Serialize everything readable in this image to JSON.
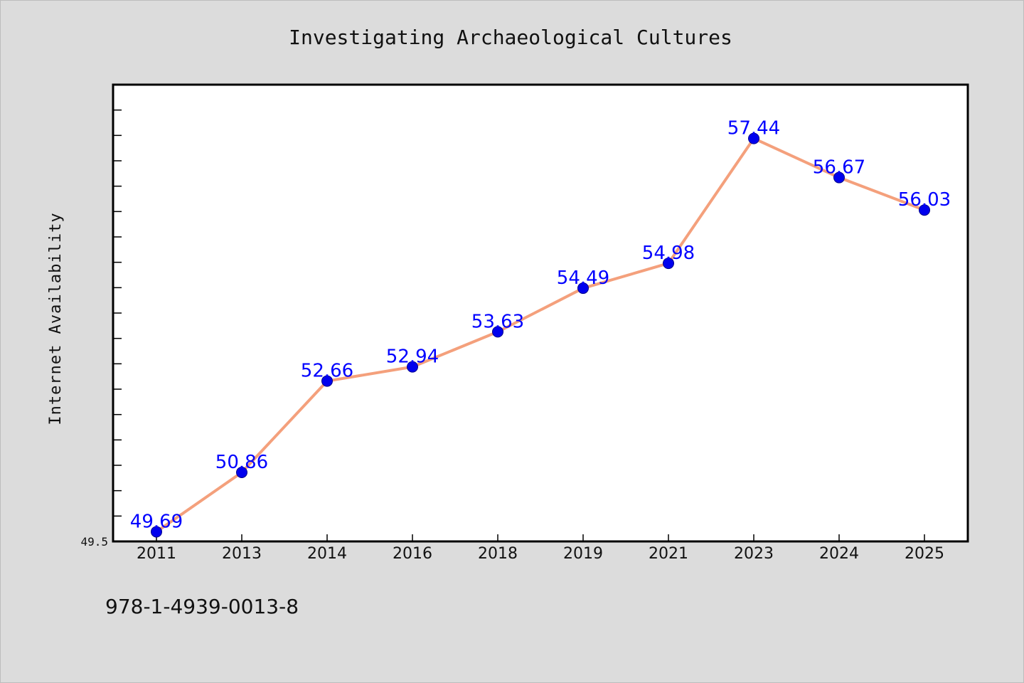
{
  "chart_data": {
    "type": "line",
    "title": "Investigating Archaeological Cultures",
    "xlabel": "",
    "ylabel": "Internet Availability",
    "categories": [
      "2011",
      "2013",
      "2014",
      "2016",
      "2018",
      "2019",
      "2021",
      "2023",
      "2024",
      "2025"
    ],
    "series": [
      {
        "values": [
          49.69,
          50.86,
          52.66,
          52.94,
          53.63,
          54.49,
          54.98,
          57.44,
          56.67,
          56.03
        ]
      }
    ],
    "data_labels": [
      "49.69",
      "50.86",
      "52.66",
      "52.94",
      "53.63",
      "54.49",
      "54.98",
      "57.44",
      "56.67",
      "56.03"
    ],
    "ylim": [
      49.5,
      58.5
    ],
    "yticks_labeled": [
      "49.5"
    ],
    "grid": false,
    "legend": "none",
    "colors": {
      "line": "#f4a07c",
      "marker": "#0000ee",
      "label": "#0000ff",
      "background": "#dcdcdc",
      "plot_bg": "#ffffff"
    }
  },
  "footer": {
    "isbn": "978-1-4939-0013-8"
  }
}
